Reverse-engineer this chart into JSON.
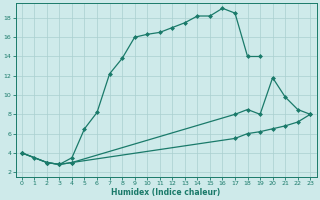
{
  "xlabel": "Humidex (Indice chaleur)",
  "background_color": "#ceeaea",
  "line_color": "#1a7a6a",
  "grid_color": "#aacfcf",
  "xlim": [
    -0.5,
    23.5
  ],
  "ylim": [
    1.5,
    19.5
  ],
  "xticks": [
    0,
    1,
    2,
    3,
    4,
    5,
    6,
    7,
    8,
    9,
    10,
    11,
    12,
    13,
    14,
    15,
    16,
    17,
    18,
    19,
    20,
    21,
    22,
    23
  ],
  "yticks": [
    2,
    4,
    6,
    8,
    10,
    12,
    14,
    16,
    18
  ],
  "curve1_x": [
    0,
    1,
    2,
    3,
    4,
    5,
    6,
    7,
    8,
    9,
    10,
    11,
    12,
    13,
    14,
    15,
    16,
    17,
    18,
    19
  ],
  "curve1_y": [
    4.0,
    3.5,
    3.0,
    2.8,
    3.5,
    6.5,
    8.2,
    12.2,
    13.8,
    16.0,
    16.3,
    16.5,
    17.0,
    17.5,
    18.2,
    18.2,
    19.0,
    18.5,
    14.0,
    14.0
  ],
  "curve2_x": [
    0,
    2,
    3,
    4,
    17,
    18,
    19,
    20,
    21,
    22,
    23
  ],
  "curve2_y": [
    4.0,
    3.0,
    2.8,
    3.0,
    8.0,
    8.5,
    8.0,
    11.8,
    9.8,
    8.5,
    8.0
  ],
  "curve3_x": [
    0,
    2,
    3,
    4,
    17,
    18,
    19,
    20,
    21,
    22,
    23
  ],
  "curve3_y": [
    4.0,
    3.0,
    2.8,
    3.0,
    5.5,
    6.0,
    6.2,
    6.5,
    6.8,
    7.2,
    8.0
  ]
}
